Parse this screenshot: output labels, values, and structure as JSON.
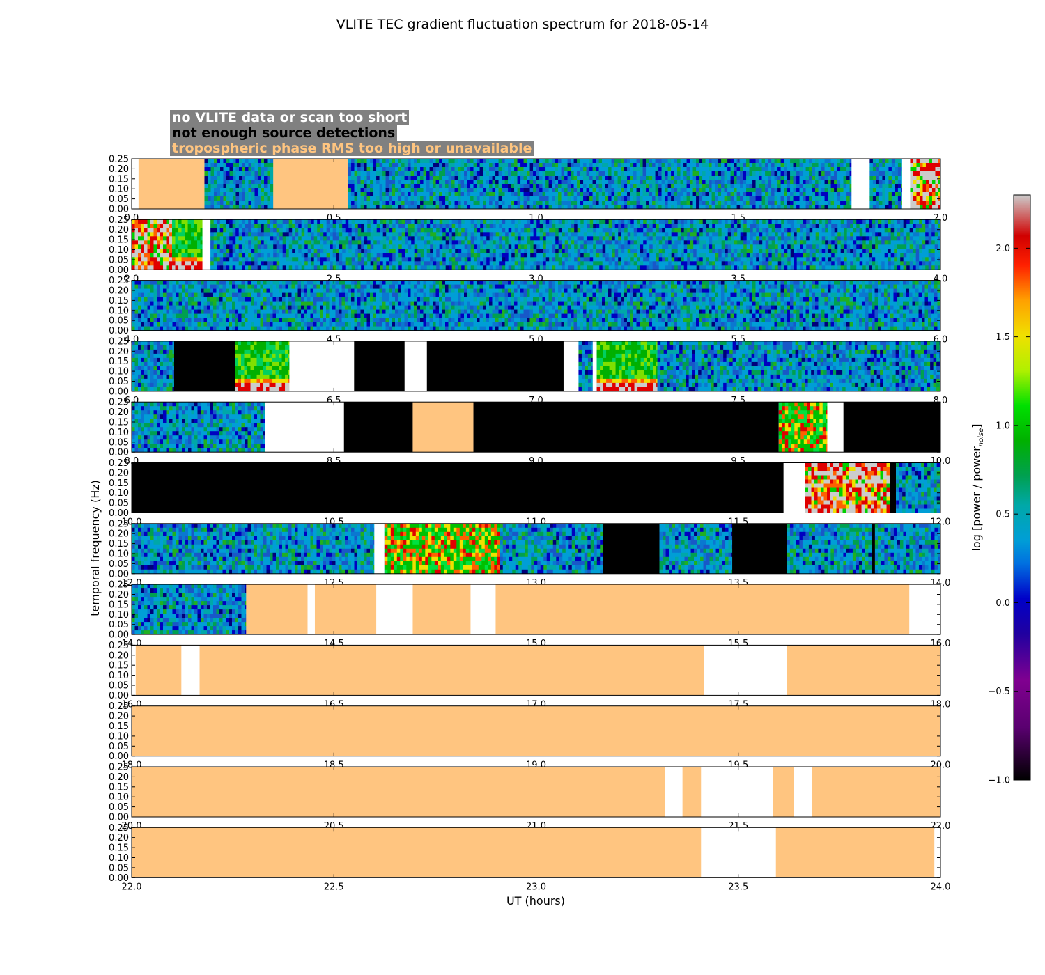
{
  "chart_data": {
    "type": "heatmap",
    "title": "VLITE TEC gradient fluctuation spectrum for 2018-05-14",
    "xlabel": "UT (hours)",
    "ylabel": "temporal frequency (Hz)",
    "ylim": [
      0,
      0.25
    ],
    "yticks": [
      "0.00",
      "0.05",
      "0.10",
      "0.15",
      "0.20",
      "0.25"
    ],
    "colorbar": {
      "label": "log [power / power",
      "label_sub": "noise",
      "label_close": "]",
      "range": [
        -1.0,
        2.3
      ],
      "ticks": [
        "−1.0",
        "−0.5",
        "0.0",
        "0.5",
        "1.0",
        "1.5",
        "2.0"
      ],
      "tick_values": [
        -1.0,
        -0.5,
        0.0,
        0.5,
        1.0,
        1.5,
        2.0
      ]
    },
    "legend": [
      {
        "label": "no VLITE data or scan too short",
        "color": "#ffffff"
      },
      {
        "label": "not enough source detections",
        "color": "#000000"
      },
      {
        "label": "tropospheric phase RMS too high or unavailable",
        "color": "#ffc580"
      }
    ],
    "rows": [
      {
        "range": [
          0,
          2
        ],
        "xticks": [
          "0.0",
          "0.5",
          "1.0",
          "1.5",
          "2.0"
        ],
        "segments": [
          [
            0,
            0.017,
            "white"
          ],
          [
            0.017,
            0.18,
            "orange"
          ],
          [
            0.18,
            0.35,
            "noise"
          ],
          [
            0.35,
            0.535,
            "orange"
          ],
          [
            0.535,
            1.78,
            "noise"
          ],
          [
            1.78,
            1.825,
            "white"
          ],
          [
            1.825,
            1.905,
            "noise"
          ],
          [
            1.905,
            1.925,
            "white"
          ],
          [
            1.925,
            2.0,
            "active"
          ]
        ]
      },
      {
        "range": [
          2,
          4
        ],
        "xticks": [
          "2.0",
          "2.5",
          "3.0",
          "3.5",
          "4.0"
        ],
        "segments": [
          [
            2.0,
            2.1,
            "active"
          ],
          [
            2.1,
            2.175,
            "lowactive"
          ],
          [
            2.175,
            2.195,
            "white"
          ],
          [
            2.195,
            4.0,
            "noise"
          ]
        ]
      },
      {
        "range": [
          4,
          6
        ],
        "xticks": [
          "4.0",
          "4.5",
          "5.0",
          "5.5",
          "6.0"
        ],
        "segments": [
          [
            4.0,
            6.0,
            "noise"
          ]
        ]
      },
      {
        "range": [
          6,
          8
        ],
        "xticks": [
          "6.0",
          "6.5",
          "7.0",
          "7.5",
          "8.0"
        ],
        "segments": [
          [
            6.0,
            6.105,
            "noise"
          ],
          [
            6.105,
            6.255,
            "black"
          ],
          [
            6.255,
            6.39,
            "lowactive"
          ],
          [
            6.39,
            6.55,
            "white"
          ],
          [
            6.55,
            6.675,
            "black"
          ],
          [
            6.675,
            6.73,
            "white"
          ],
          [
            6.73,
            7.068,
            "black"
          ],
          [
            7.068,
            7.105,
            "white"
          ],
          [
            7.105,
            7.14,
            "noise"
          ],
          [
            7.14,
            7.15,
            "white"
          ],
          [
            7.15,
            7.3,
            "lowactive"
          ],
          [
            7.3,
            8.0,
            "noise"
          ]
        ]
      },
      {
        "range": [
          8,
          10
        ],
        "xticks": [
          "8.0",
          "8.5",
          "9.0",
          "9.5",
          "10.0"
        ],
        "segments": [
          [
            8.0,
            8.33,
            "noise"
          ],
          [
            8.33,
            8.525,
            "white"
          ],
          [
            8.525,
            8.695,
            "black"
          ],
          [
            8.695,
            8.845,
            "orange"
          ],
          [
            8.845,
            9.6,
            "black"
          ],
          [
            9.6,
            9.72,
            "midactive"
          ],
          [
            9.72,
            9.76,
            "white"
          ],
          [
            9.76,
            10.0,
            "black"
          ]
        ]
      },
      {
        "range": [
          10,
          12
        ],
        "xticks": [
          "10.0",
          "10.5",
          "11.0",
          "11.5",
          "12.0"
        ],
        "segments": [
          [
            10.0,
            11.612,
            "black"
          ],
          [
            11.612,
            11.665,
            "white"
          ],
          [
            11.665,
            11.875,
            "active"
          ],
          [
            11.875,
            11.89,
            "black"
          ],
          [
            11.89,
            12.0,
            "noise"
          ]
        ]
      },
      {
        "range": [
          12,
          14
        ],
        "xticks": [
          "12.0",
          "12.5",
          "13.0",
          "13.5",
          "14.0"
        ],
        "segments": [
          [
            12.0,
            12.6,
            "noise"
          ],
          [
            12.6,
            12.625,
            "white"
          ],
          [
            12.625,
            12.91,
            "midactive"
          ],
          [
            12.91,
            13.165,
            "noise"
          ],
          [
            13.165,
            13.305,
            "black"
          ],
          [
            13.305,
            13.485,
            "noise"
          ],
          [
            13.485,
            13.62,
            "black"
          ],
          [
            13.62,
            13.83,
            "noise"
          ],
          [
            13.83,
            13.838,
            "black"
          ],
          [
            13.838,
            14.0,
            "noise"
          ]
        ]
      },
      {
        "range": [
          14,
          16
        ],
        "xticks": [
          "14.0",
          "14.5",
          "15.0",
          "15.5",
          "16.0"
        ],
        "segments": [
          [
            14.0,
            14.283,
            "noise"
          ],
          [
            14.283,
            14.435,
            "orange"
          ],
          [
            14.435,
            14.453,
            "white"
          ],
          [
            14.453,
            14.605,
            "orange"
          ],
          [
            14.605,
            14.695,
            "white"
          ],
          [
            14.695,
            14.838,
            "orange"
          ],
          [
            14.838,
            14.9,
            "white"
          ],
          [
            14.9,
            15.923,
            "orange"
          ],
          [
            15.923,
            16.0,
            "white"
          ]
        ]
      },
      {
        "range": [
          16,
          18
        ],
        "xticks": [
          "16.0",
          "16.5",
          "17.0",
          "17.5",
          "18.0"
        ],
        "segments": [
          [
            16.0,
            16.01,
            "white"
          ],
          [
            16.01,
            16.123,
            "orange"
          ],
          [
            16.123,
            16.168,
            "white"
          ],
          [
            16.168,
            17.415,
            "orange"
          ],
          [
            17.415,
            17.62,
            "white"
          ],
          [
            17.62,
            18.0,
            "orange"
          ]
        ]
      },
      {
        "range": [
          18,
          20
        ],
        "xticks": [
          "18.0",
          "18.5",
          "19.0",
          "19.5",
          "20.0"
        ],
        "segments": [
          [
            18.0,
            20.0,
            "orange"
          ]
        ]
      },
      {
        "range": [
          20,
          22
        ],
        "xticks": [
          "20.0",
          "20.5",
          "21.0",
          "21.5",
          "22.0"
        ],
        "segments": [
          [
            20.0,
            21.318,
            "orange"
          ],
          [
            21.318,
            21.362,
            "white"
          ],
          [
            21.362,
            21.408,
            "orange"
          ],
          [
            21.408,
            21.585,
            "white"
          ],
          [
            21.585,
            21.638,
            "orange"
          ],
          [
            21.638,
            21.683,
            "white"
          ],
          [
            21.683,
            22.0,
            "orange"
          ]
        ]
      },
      {
        "range": [
          22,
          24
        ],
        "xticks": [
          "22.0",
          "22.5",
          "23.0",
          "23.5",
          "24.0"
        ],
        "segments": [
          [
            22.0,
            23.408,
            "orange"
          ],
          [
            23.408,
            23.593,
            "white"
          ],
          [
            23.593,
            23.985,
            "orange"
          ],
          [
            23.985,
            24.0,
            "white"
          ]
        ]
      }
    ]
  }
}
